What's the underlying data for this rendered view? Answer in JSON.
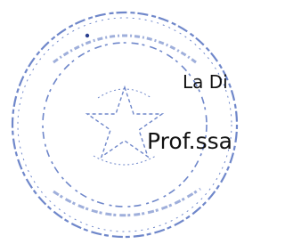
{
  "document": {
    "lines": [
      "La Di",
      "Prof.ssa"
    ]
  }
}
